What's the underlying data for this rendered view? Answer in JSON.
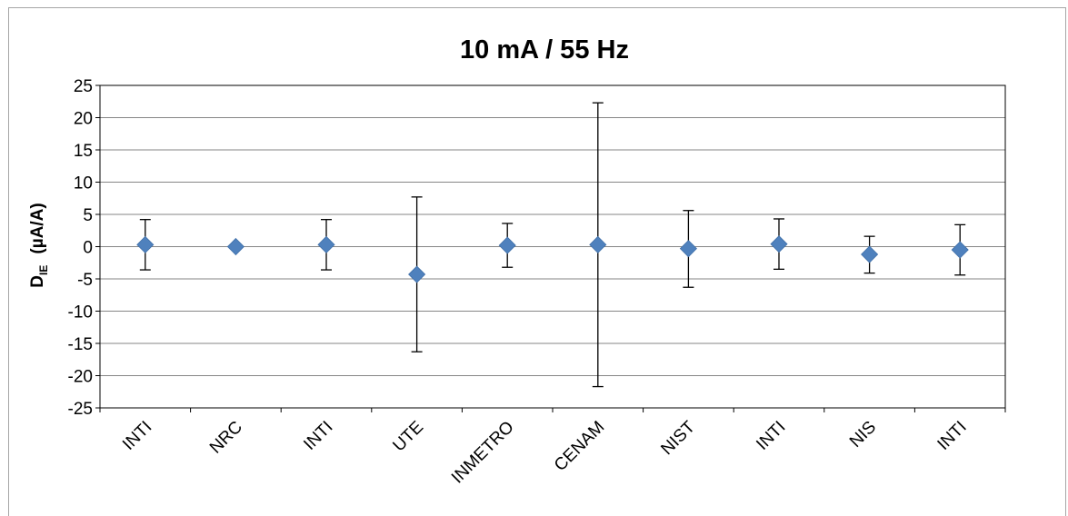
{
  "chart_data": {
    "type": "scatter",
    "title": "10 mA / 55 Hz",
    "ylabel": "D",
    "ylabel_sub": "IE",
    "ylabel_unit": "(µA/A)",
    "xlabel": "",
    "categories": [
      "INTI",
      "NRC",
      "INTI",
      "UTE",
      "INMETRO",
      "CENAM",
      "NIST",
      "INTI",
      "NIS",
      "INTI"
    ],
    "values": [
      0.3,
      0.0,
      0.3,
      -4.3,
      0.2,
      0.3,
      -0.3,
      0.4,
      -1.2,
      -0.5
    ],
    "error_low": [
      -3.6,
      null,
      -3.6,
      -16.3,
      -3.2,
      -21.7,
      -6.3,
      -3.5,
      -4.1,
      -4.4
    ],
    "error_high": [
      4.2,
      null,
      4.2,
      7.7,
      3.6,
      22.3,
      5.6,
      4.3,
      1.6,
      3.4
    ],
    "ylim": [
      -25,
      25
    ],
    "yticks": [
      25,
      20,
      15,
      10,
      5,
      0,
      -5,
      -10,
      -15,
      -20,
      -25
    ],
    "grid": true,
    "legend": "none",
    "marker_color": "#4f81bd",
    "marker": "diamond"
  }
}
